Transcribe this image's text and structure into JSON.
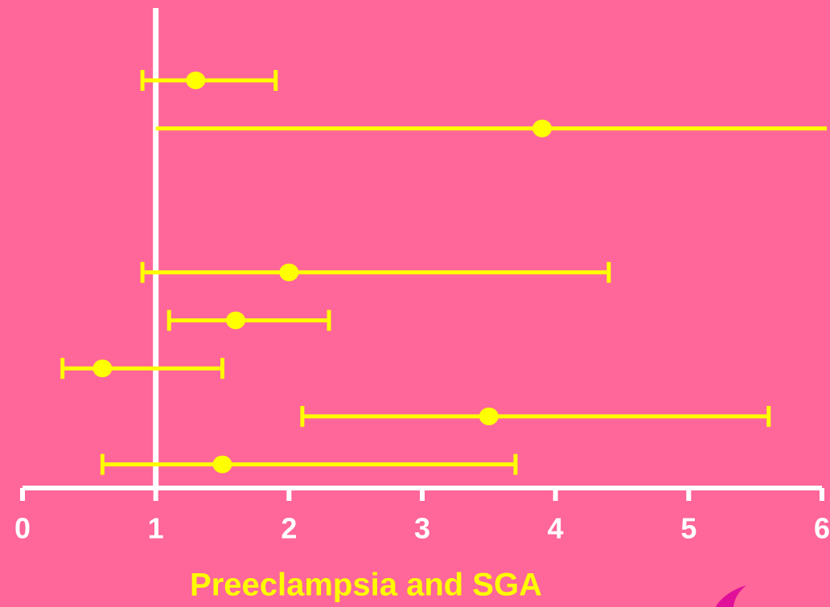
{
  "chart_data": {
    "type": "forest",
    "title": "Preeclampsia and SGA",
    "categories": [
      null,
      null,
      null,
      null,
      null,
      null,
      null,
      null,
      null
    ],
    "values": [
      1.3,
      3.9,
      null,
      null,
      2.0,
      1.6,
      0.6,
      3.5,
      1.5
    ],
    "lower": [
      0.9,
      1.0,
      null,
      null,
      0.9,
      1.1,
      0.3,
      2.1,
      0.6
    ],
    "upper": [
      1.9,
      null,
      null,
      null,
      4.4,
      2.3,
      1.5,
      5.6,
      3.7
    ],
    "color": "#ffff00",
    "reference_line": 1,
    "xlim": [
      0,
      6
    ],
    "xticks": [
      0,
      1,
      2,
      3,
      4,
      5,
      6
    ]
  }
}
